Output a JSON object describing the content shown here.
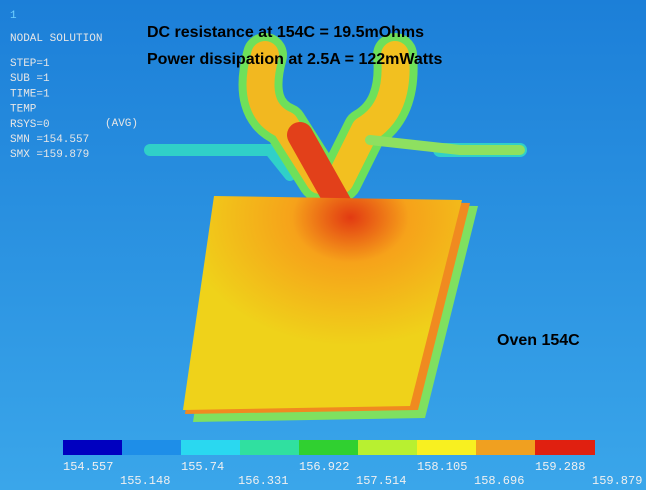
{
  "window_number": "1",
  "solution_info": {
    "title": "NODAL SOLUTION",
    "lines": [
      "STEP=1",
      "SUB =1",
      "TIME=1",
      "TEMP",
      "RSYS=0",
      "SMN =154.557",
      "SMX =159.879"
    ],
    "avg": "(AVG)"
  },
  "annotations": [
    "DC resistance at 154C = 19.5mOhms",
    "Power dissipation at 2.5A = 122mWatts",
    "Oven 154C"
  ],
  "legend": {
    "upper_labels": [
      "154.557",
      "155.74",
      "156.922",
      "158.105",
      "159.288"
    ],
    "lower_labels": [
      "155.148",
      "156.331",
      "157.514",
      "158.696",
      "159.879"
    ]
  }
}
